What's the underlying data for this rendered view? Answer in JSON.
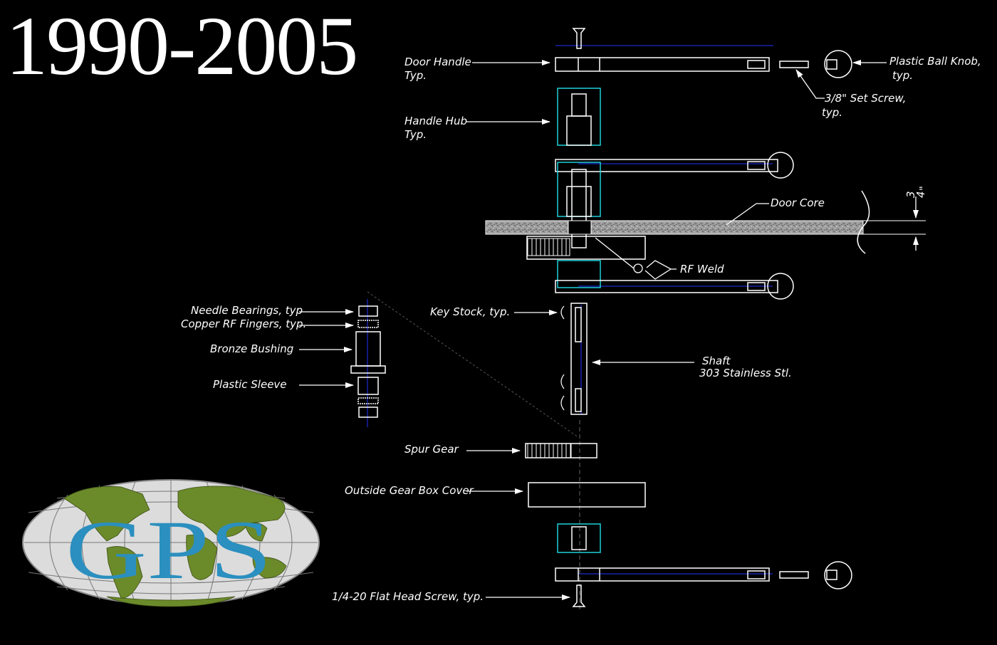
{
  "title": "1990-2005",
  "logo": {
    "text": "GPS",
    "colors": {
      "land": "#6b8a2a",
      "ocean": "#d9d9d9",
      "letters": "#2b8fbf"
    }
  },
  "colors": {
    "background": "#000000",
    "line": "#ffffff",
    "centerline": "#2233ff",
    "hub": "#1fd0d8"
  },
  "labels": {
    "door_handle": "Door Handle",
    "door_handle_typ": "Typ.",
    "plastic_ball_knob": "Plastic Ball Knob,",
    "plastic_ball_knob_typ": "typ.",
    "set_screw": "3/8\" Set Screw,",
    "set_screw_typ": "typ.",
    "handle_hub": "Handle Hub",
    "handle_hub_typ": "Typ.",
    "door_core": "Door Core",
    "dimension_num": "3",
    "dimension_den": "4",
    "dimension_mark": "\"",
    "rf_weld": "RF Weld",
    "needle_bearings": "Needle Bearings, typ",
    "copper_rf_fingers": "Copper RF Fingers, typ.",
    "bronze_bushing": "Bronze Bushing",
    "plastic_sleeve": "Plastic Sleeve",
    "key_stock": "Key Stock, typ.",
    "shaft": "Shaft",
    "shaft_material": "303 Stainless Stl.",
    "spur_gear": "Spur Gear",
    "gear_box_cover": "Outside Gear Box Cover",
    "flat_head_screw": "1/4-20 Flat Head Screw, typ."
  }
}
